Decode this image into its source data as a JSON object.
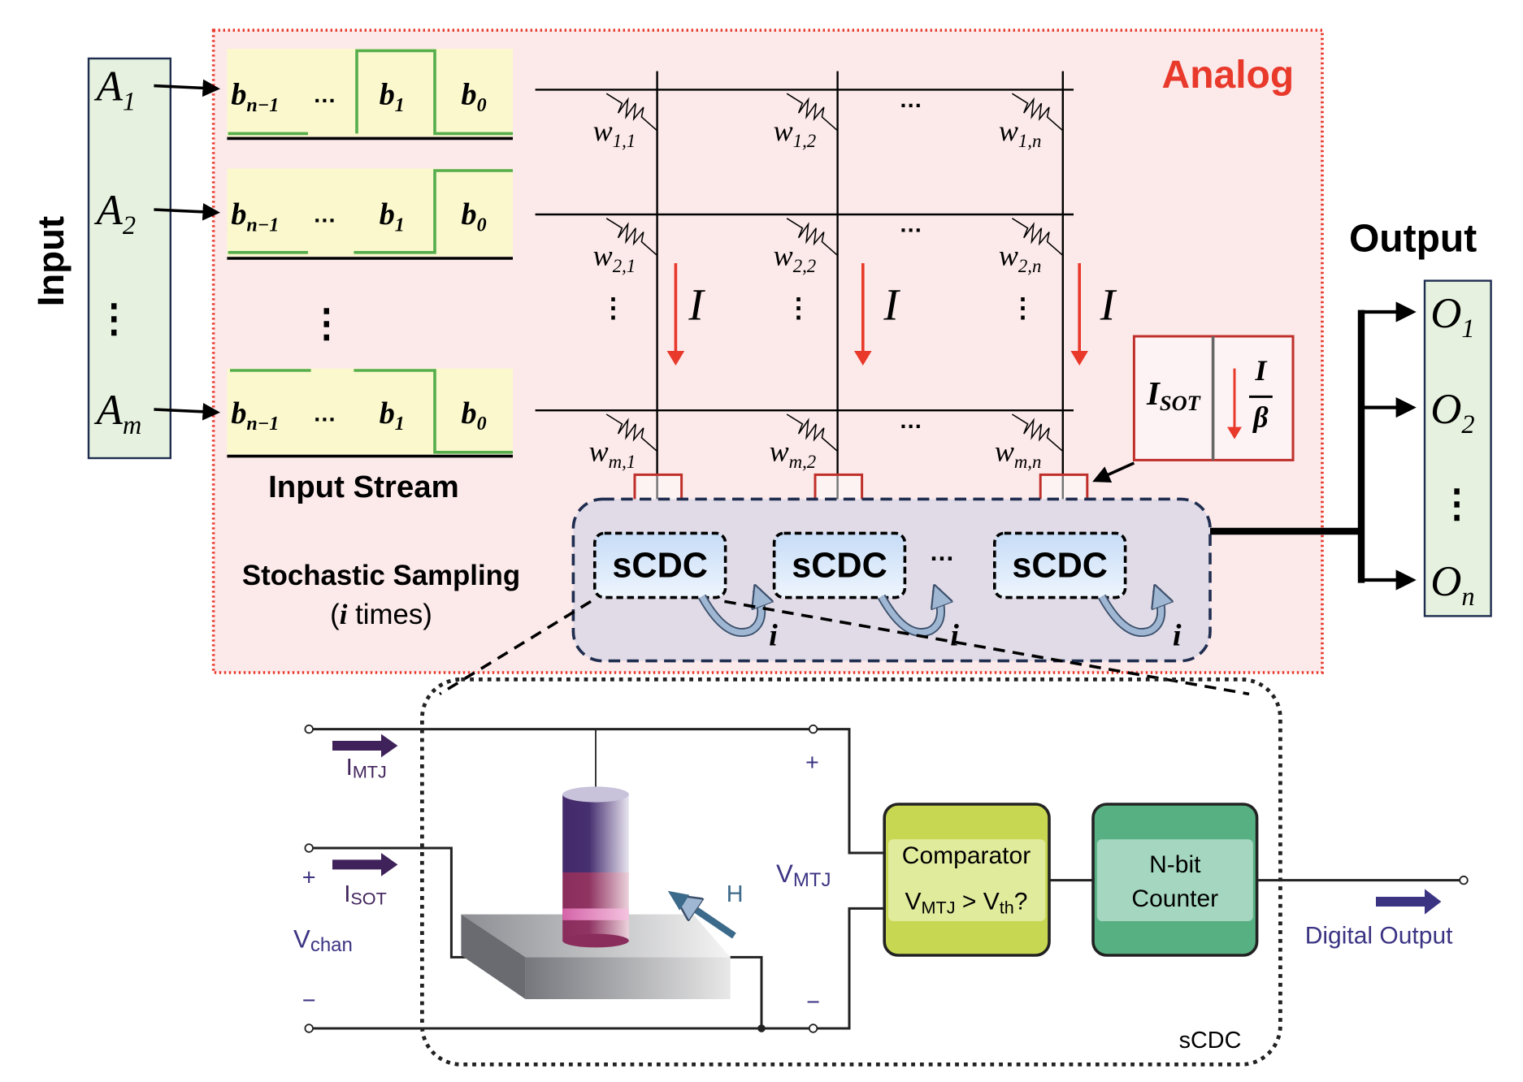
{
  "input": {
    "label": "Input",
    "items": [
      {
        "main": "A",
        "sub": "1"
      },
      {
        "main": "A",
        "sub": "2"
      },
      {
        "main": "A",
        "sub": "m"
      }
    ],
    "vdots": "⋮"
  },
  "streams": {
    "label": "Input Stream",
    "cells": [
      {
        "main": "b",
        "sub": "n−1"
      },
      {
        "main": "…",
        "sub": ""
      },
      {
        "main": "b",
        "sub": "1"
      },
      {
        "main": "b",
        "sub": "0"
      }
    ],
    "vdots": "⋮"
  },
  "sampling": {
    "line1": "Stochastic Sampling",
    "open": "(",
    "i": "i",
    "rest": " times)"
  },
  "analog_label": "Analog",
  "crossbar": {
    "weights": [
      [
        {
          "main": "w",
          "sub": "1,1"
        },
        {
          "main": "w",
          "sub": "1,2"
        },
        {
          "main": "w",
          "sub": "1,n"
        }
      ],
      [
        {
          "main": "w",
          "sub": "2,1"
        },
        {
          "main": "w",
          "sub": "2,2"
        },
        {
          "main": "w",
          "sub": "2,n"
        }
      ],
      [
        {
          "main": "w",
          "sub": "m,1"
        },
        {
          "main": "w",
          "sub": "m,2"
        },
        {
          "main": "w",
          "sub": "m,n"
        }
      ]
    ],
    "current": "I",
    "hdots": "…",
    "vdots": "⋮"
  },
  "isot": {
    "label": "I",
    "sub": "SOT",
    "num": "I",
    "den": "β"
  },
  "scdc": {
    "blocks": [
      "sCDC",
      "sCDC",
      "sCDC"
    ],
    "iter": "i",
    "hdots": "…"
  },
  "output": {
    "label": "Output",
    "items": [
      {
        "main": "O",
        "sub": "1"
      },
      {
        "main": "O",
        "sub": "2"
      },
      {
        "main": "O",
        "sub": "n"
      }
    ],
    "vdots": "⋮"
  },
  "detail": {
    "imtj": {
      "main": "I",
      "sub": "MTJ"
    },
    "isot": {
      "main": "I",
      "sub": "SOT"
    },
    "vchan": {
      "main": "V",
      "sub": "chan"
    },
    "vmtj": {
      "main": "V",
      "sub": "MTJ"
    },
    "plus": "+",
    "minus": "−",
    "h": "H",
    "comparator": {
      "title": "Comparator",
      "v1": "V",
      "v1sub": "MTJ",
      "gt": " > ",
      "v2": "V",
      "v2sub": "th",
      "q": "?"
    },
    "counter": {
      "line1": "N-bit",
      "line2": "Counter"
    },
    "digital_output": "Digital Output",
    "box_label": "sCDC"
  },
  "colors": {
    "analog_red": "#e8392b",
    "analog_bg": "#fce9ea",
    "input_green": "#e6f2df",
    "stream_yellow": "#faf8cc",
    "wave_green": "#56ad4c",
    "scdc_bg": "#e0dbe7",
    "navy": "#1f2d4f",
    "comparator": "#c8d751",
    "counter": "#57b082",
    "label_purple": "#3b3483"
  }
}
